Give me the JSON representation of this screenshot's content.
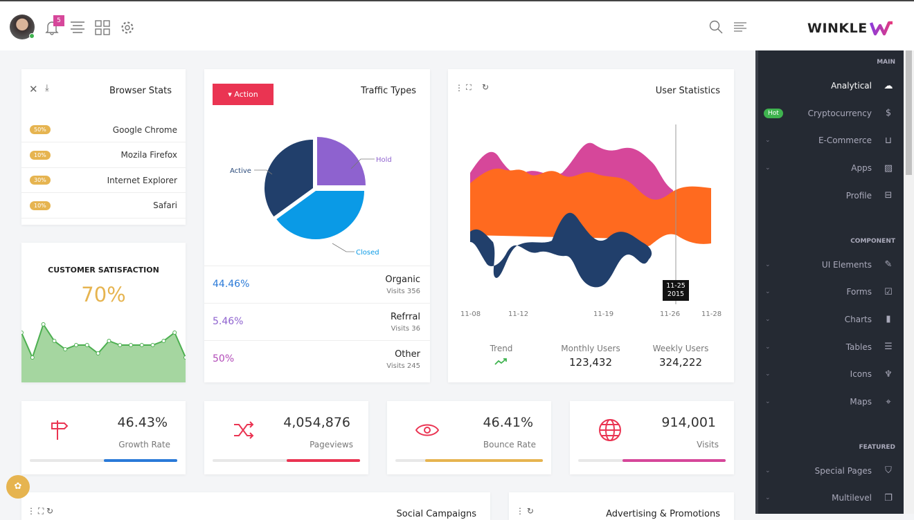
{
  "header": {
    "notifications": "5",
    "brand": "WINKLE",
    "icons": [
      "avatar",
      "bell-icon",
      "menu-icon",
      "grid-icon",
      "gear-icon",
      "search-icon",
      "list-icon"
    ]
  },
  "sidebar": {
    "sections": [
      {
        "title": "MAIN",
        "items": [
          {
            "label": "Analytical",
            "icon": "dashboard-icon",
            "active": true
          },
          {
            "label": "Cryptocurrency",
            "icon": "dollar-icon",
            "badge": "Hot"
          },
          {
            "label": "E-Commerce",
            "icon": "cart-icon",
            "chevron": true
          },
          {
            "label": "Apps",
            "icon": "image-icon",
            "chevron": true
          },
          {
            "label": "Profile",
            "icon": "briefcase-icon"
          }
        ]
      },
      {
        "title": "COMPONENT",
        "items": [
          {
            "label": "UI Elements",
            "icon": "edit-icon",
            "chevron": true
          },
          {
            "label": "Forms",
            "icon": "checkbox-icon",
            "chevron": true
          },
          {
            "label": "Charts",
            "icon": "chart-icon",
            "chevron": true
          },
          {
            "label": "Tables",
            "icon": "table-icon",
            "chevron": true
          },
          {
            "label": "Icons",
            "icon": "trophy-icon",
            "chevron": true
          },
          {
            "label": "Maps",
            "icon": "pin-icon",
            "chevron": true
          }
        ]
      },
      {
        "title": "FEATURED",
        "items": [
          {
            "label": "Special Pages",
            "icon": "shield-icon",
            "chevron": true
          },
          {
            "label": "Multilevel",
            "icon": "layers-icon",
            "chevron": true
          }
        ]
      }
    ]
  },
  "browser": {
    "title": "Browser Stats",
    "rows": [
      {
        "pct": "50%",
        "name": "Google Chrome"
      },
      {
        "pct": "10%",
        "name": "Mozila Firefox"
      },
      {
        "pct": "30%",
        "name": "Internet Explorer"
      },
      {
        "pct": "10%",
        "name": "Safari"
      }
    ]
  },
  "satisfaction": {
    "title": "CUSTOMER SATISFACTION",
    "value": "70%",
    "series": [
      6,
      3,
      7,
      5,
      4,
      4.5,
      4.5,
      3.5,
      5,
      4.5,
      4.5,
      4.5,
      4.5,
      5,
      6,
      3
    ]
  },
  "traffic": {
    "title": "Traffic Types",
    "action": "Action",
    "pie": [
      {
        "label": "Active",
        "value": 35,
        "color": "#213f6b"
      },
      {
        "label": "Hold",
        "value": 25,
        "color": "#8e62cf"
      },
      {
        "label": "Closed",
        "value": 40,
        "color": "#0a9ae6"
      }
    ],
    "rows": [
      {
        "pct": "44.46%",
        "color": "#2a7ad8",
        "name": "Organic",
        "visits": "Visits 356"
      },
      {
        "pct": "5.46%",
        "color": "#8e62cf",
        "name": "Refrral",
        "visits": "Visits 36"
      },
      {
        "pct": "50%",
        "color": "#b24bb8",
        "name": "Other",
        "visits": "Visits 245"
      }
    ]
  },
  "users": {
    "title": "User Statistics",
    "xticks": [
      "11-08",
      "11-12",
      "11-19",
      "11-26",
      "11-28"
    ],
    "tooltip": [
      "11-25",
      "2015"
    ],
    "trend": "Trend",
    "monthly_label": "Monthly Users",
    "monthly": "123,432",
    "weekly_label": "Weekly Users",
    "weekly": "324,222"
  },
  "stats": [
    {
      "value": "46.43%",
      "label": "Growth Rate",
      "icon": "signpost-icon",
      "progress": 50,
      "color": "#2a7ad8"
    },
    {
      "value": "4,054,876",
      "label": "Pageviews",
      "icon": "shuffle-icon",
      "progress": 50,
      "color": "#ea3452"
    },
    {
      "value": "46.41%",
      "label": "Bounce Rate",
      "icon": "eye-icon",
      "progress": 80,
      "color": "#e6b450"
    },
    {
      "value": "914,001",
      "label": "Visits",
      "icon": "globe-icon",
      "progress": 70,
      "color": "#d6479a"
    }
  ],
  "bottom": {
    "social": "Social Campaigns",
    "ads": "Advertising & Promotions"
  }
}
